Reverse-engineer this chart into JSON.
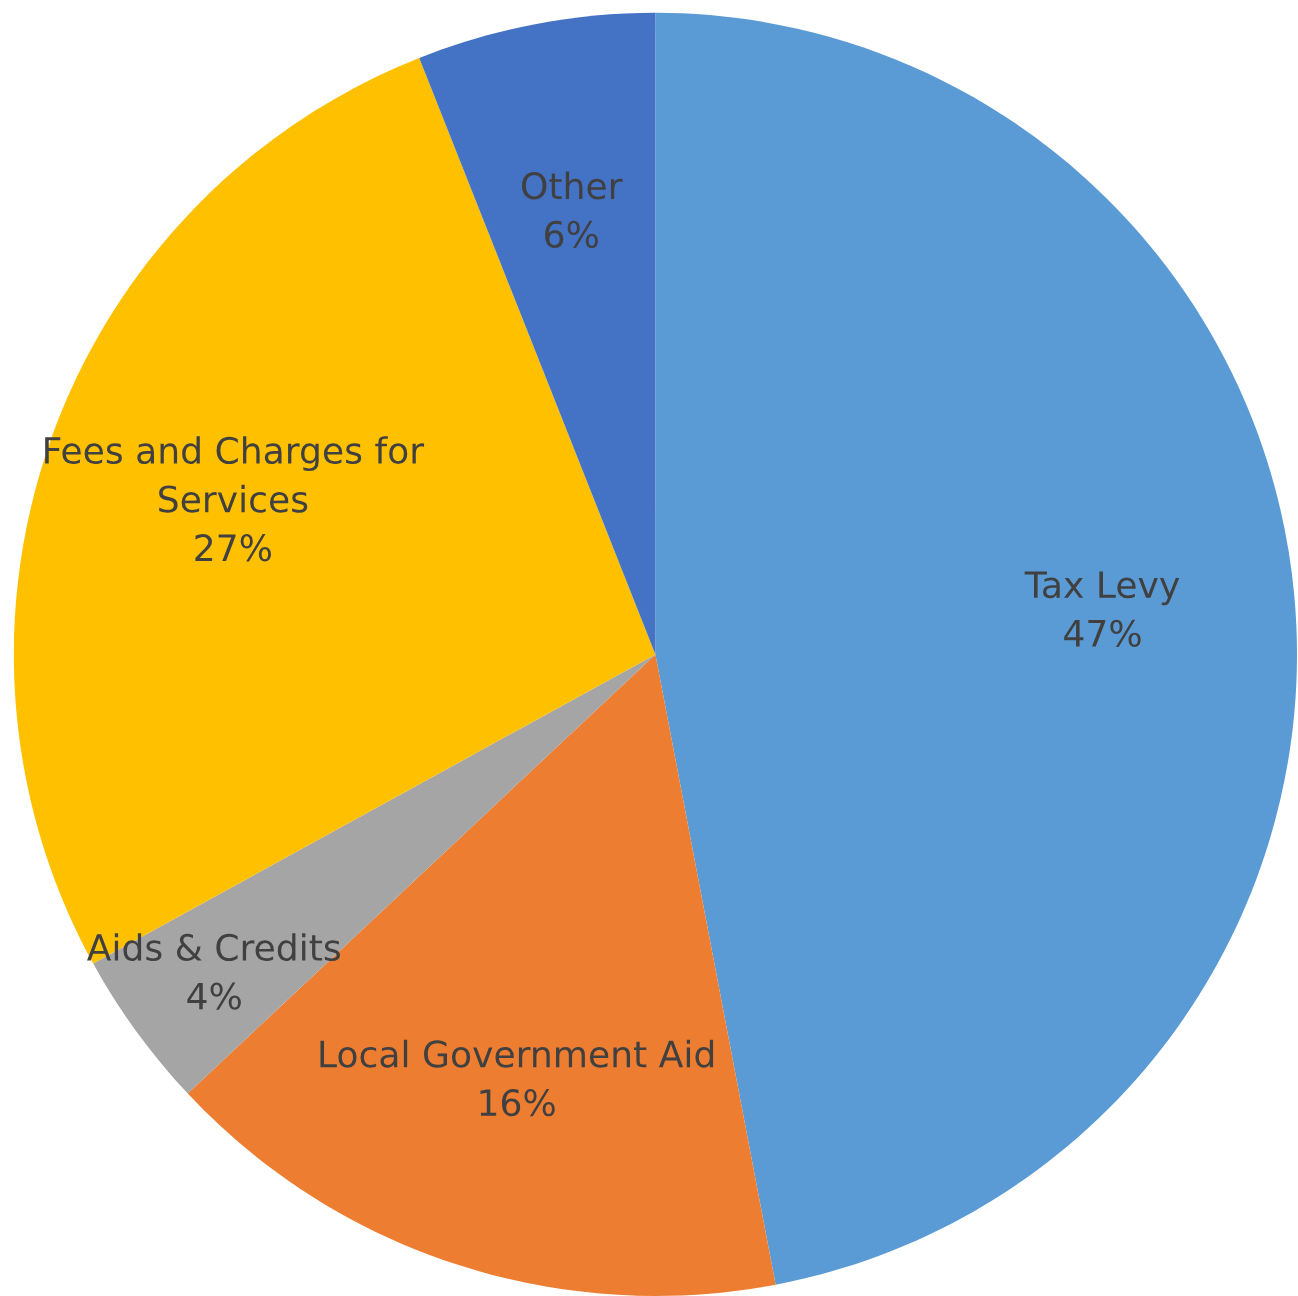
{
  "chart_data": {
    "type": "pie",
    "categories": [
      "Tax Levy",
      "Local Government Aid",
      "Aids & Credits",
      "Fees and Charges for\nServices",
      "Other"
    ],
    "values": [
      47,
      16,
      4,
      27,
      6
    ],
    "colors": [
      "#5b9bd5",
      "#ed7d31",
      "#a5a5a5",
      "#ffc000",
      "#4472c4"
    ],
    "value_labels": [
      "47%",
      "16%",
      "4%",
      "27%",
      "6%"
    ],
    "legend": false
  }
}
